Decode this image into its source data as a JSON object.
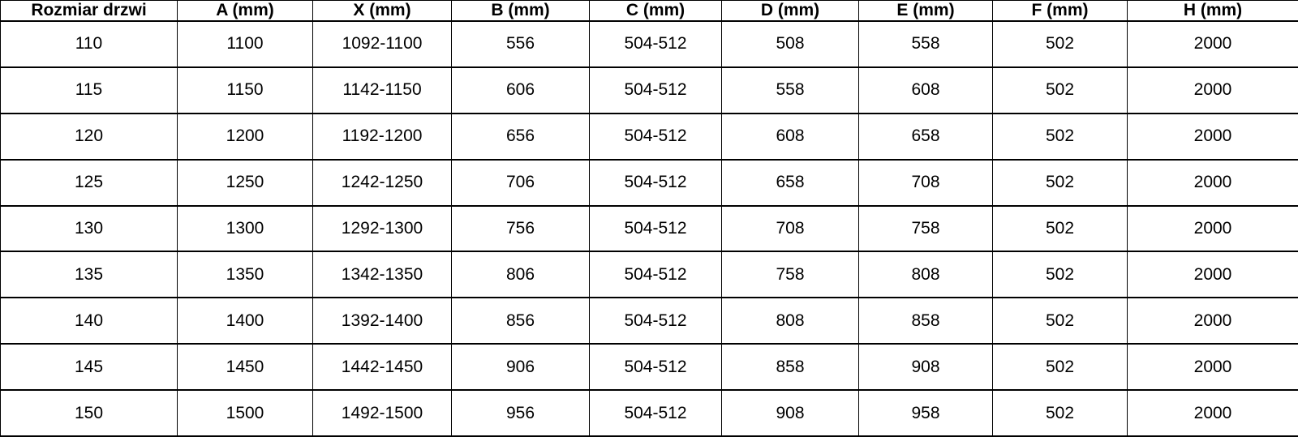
{
  "table": {
    "headers": [
      "Rozmiar drzwi",
      "A (mm)",
      "X (mm)",
      "B (mm)",
      "C (mm)",
      "D (mm)",
      "E (mm)",
      "F (mm)",
      "H (mm)"
    ],
    "rows": [
      [
        "110",
        "1100",
        "1092-1100",
        "556",
        "504-512",
        "508",
        "558",
        "502",
        "2000"
      ],
      [
        "115",
        "1150",
        "1142-1150",
        "606",
        "504-512",
        "558",
        "608",
        "502",
        "2000"
      ],
      [
        "120",
        "1200",
        "1192-1200",
        "656",
        "504-512",
        "608",
        "658",
        "502",
        "2000"
      ],
      [
        "125",
        "1250",
        "1242-1250",
        "706",
        "504-512",
        "658",
        "708",
        "502",
        "2000"
      ],
      [
        "130",
        "1300",
        "1292-1300",
        "756",
        "504-512",
        "708",
        "758",
        "502",
        "2000"
      ],
      [
        "135",
        "1350",
        "1342-1350",
        "806",
        "504-512",
        "758",
        "808",
        "502",
        "2000"
      ],
      [
        "140",
        "1400",
        "1392-1400",
        "856",
        "504-512",
        "808",
        "858",
        "502",
        "2000"
      ],
      [
        "145",
        "1450",
        "1442-1450",
        "906",
        "504-512",
        "858",
        "908",
        "502",
        "2000"
      ],
      [
        "150",
        "1500",
        "1492-1500",
        "956",
        "504-512",
        "908",
        "958",
        "502",
        "2000"
      ]
    ]
  },
  "chart_data": {
    "type": "table",
    "title": "",
    "columns": [
      "Rozmiar drzwi",
      "A (mm)",
      "X (mm)",
      "B (mm)",
      "C (mm)",
      "D (mm)",
      "E (mm)",
      "F (mm)",
      "H (mm)"
    ],
    "rows": [
      [
        "110",
        "1100",
        "1092-1100",
        "556",
        "504-512",
        "508",
        "558",
        "502",
        "2000"
      ],
      [
        "115",
        "1150",
        "1142-1150",
        "606",
        "504-512",
        "558",
        "608",
        "502",
        "2000"
      ],
      [
        "120",
        "1200",
        "1192-1200",
        "656",
        "504-512",
        "608",
        "658",
        "502",
        "2000"
      ],
      [
        "125",
        "1250",
        "1242-1250",
        "706",
        "504-512",
        "658",
        "708",
        "502",
        "2000"
      ],
      [
        "130",
        "1300",
        "1292-1300",
        "756",
        "504-512",
        "708",
        "758",
        "502",
        "2000"
      ],
      [
        "135",
        "1350",
        "1342-1350",
        "806",
        "504-512",
        "758",
        "808",
        "502",
        "2000"
      ],
      [
        "140",
        "1400",
        "1392-1400",
        "856",
        "504-512",
        "808",
        "858",
        "502",
        "2000"
      ],
      [
        "145",
        "1450",
        "1442-1450",
        "906",
        "504-512",
        "858",
        "908",
        "502",
        "2000"
      ],
      [
        "150",
        "1500",
        "1492-1500",
        "956",
        "504-512",
        "908",
        "958",
        "502",
        "2000"
      ]
    ]
  },
  "colors": {
    "border": "#000000",
    "text": "#000000",
    "background": "#ffffff"
  }
}
